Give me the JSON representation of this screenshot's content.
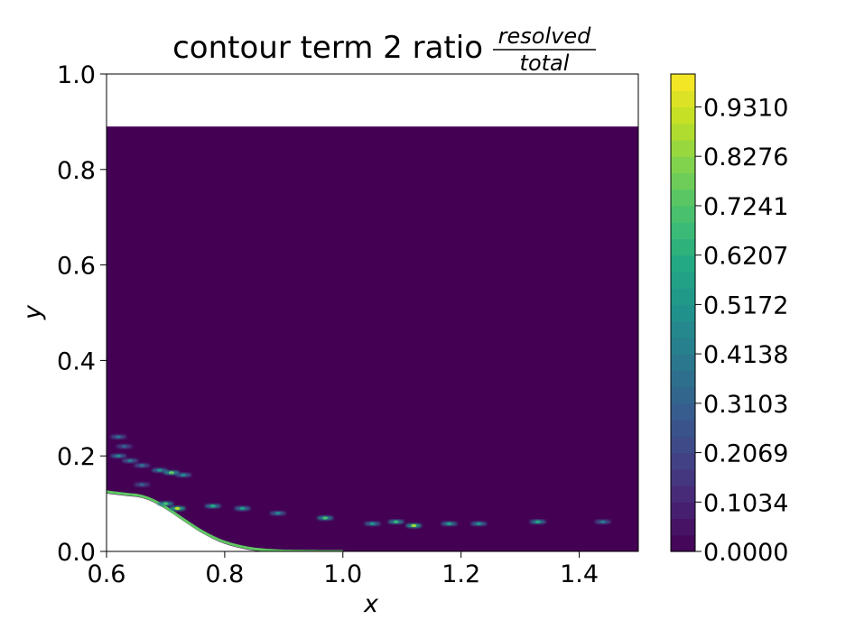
{
  "chart_data": {
    "type": "heatmap",
    "title": "contour term 2 ratio",
    "title_fraction": {
      "numerator": "resolved",
      "denominator": "total"
    },
    "xlabel": "x",
    "ylabel": "y",
    "xlim": [
      0.6,
      1.5
    ],
    "ylim": [
      0.0,
      1.0
    ],
    "xticks": [
      "0.6",
      "0.8",
      "1.0",
      "1.2",
      "1.4"
    ],
    "yticks": [
      "0.0",
      "0.2",
      "0.4",
      "0.6",
      "0.8",
      "1.0"
    ],
    "grid": false,
    "colormap": "viridis",
    "colorbar": {
      "range": [
        0.0,
        1.0
      ],
      "ticks": [
        "0.0000",
        "0.1034",
        "0.2069",
        "0.3103",
        "0.4138",
        "0.5172",
        "0.6207",
        "0.7241",
        "0.8276",
        "0.9310"
      ]
    },
    "field": {
      "background_value": 0.0,
      "top_boundary_y": 0.89,
      "streaks": [
        {
          "x": 0.62,
          "y": 0.24,
          "value": 0.35
        },
        {
          "x": 0.63,
          "y": 0.22,
          "value": 0.3
        },
        {
          "x": 0.62,
          "y": 0.2,
          "value": 0.45
        },
        {
          "x": 0.64,
          "y": 0.19,
          "value": 0.4
        },
        {
          "x": 0.66,
          "y": 0.18,
          "value": 0.35
        },
        {
          "x": 0.69,
          "y": 0.17,
          "value": 0.5
        },
        {
          "x": 0.71,
          "y": 0.165,
          "value": 0.75
        },
        {
          "x": 0.73,
          "y": 0.16,
          "value": 0.45
        },
        {
          "x": 0.66,
          "y": 0.14,
          "value": 0.3
        },
        {
          "x": 0.7,
          "y": 0.1,
          "value": 0.7
        },
        {
          "x": 0.72,
          "y": 0.09,
          "value": 0.9
        },
        {
          "x": 0.78,
          "y": 0.095,
          "value": 0.6
        },
        {
          "x": 0.83,
          "y": 0.09,
          "value": 0.55
        },
        {
          "x": 0.89,
          "y": 0.08,
          "value": 0.45
        },
        {
          "x": 0.97,
          "y": 0.07,
          "value": 0.7
        },
        {
          "x": 1.05,
          "y": 0.058,
          "value": 0.5
        },
        {
          "x": 1.09,
          "y": 0.062,
          "value": 0.65
        },
        {
          "x": 1.12,
          "y": 0.054,
          "value": 0.85
        },
        {
          "x": 1.18,
          "y": 0.058,
          "value": 0.55
        },
        {
          "x": 1.23,
          "y": 0.058,
          "value": 0.5
        },
        {
          "x": 1.33,
          "y": 0.062,
          "value": 0.6
        },
        {
          "x": 1.44,
          "y": 0.062,
          "value": 0.4
        }
      ]
    }
  }
}
